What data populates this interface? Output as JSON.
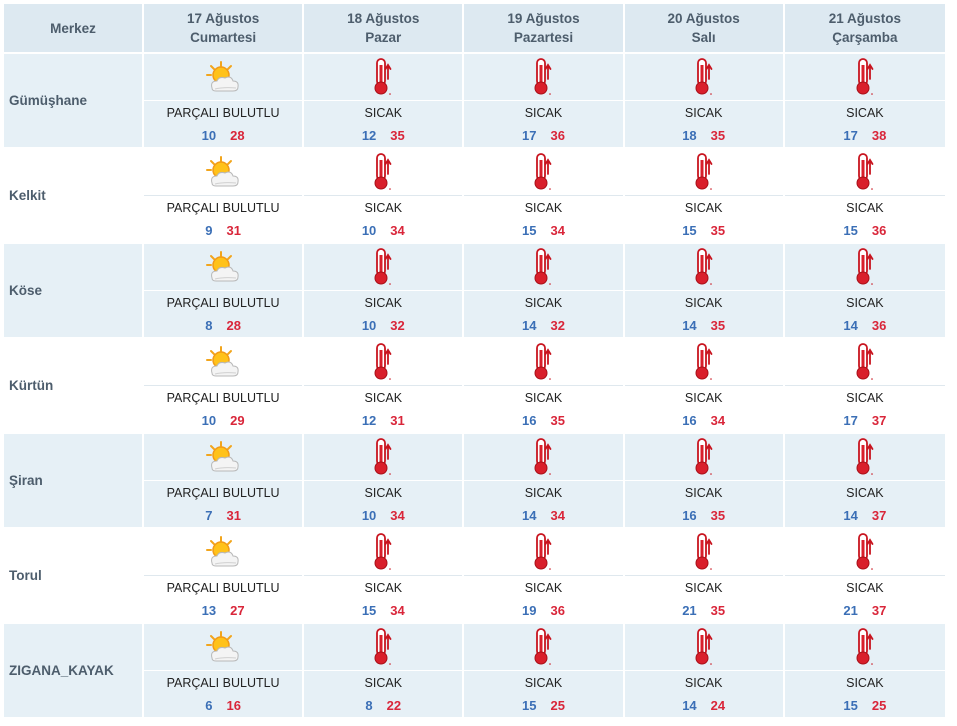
{
  "header": {
    "merkez_label": "Merkez",
    "days": [
      {
        "date": "17 Ağustos",
        "weekday": "Cumartesi"
      },
      {
        "date": "18 Ağustos",
        "weekday": "Pazar"
      },
      {
        "date": "19 Ağustos",
        "weekday": "Pazartesi"
      },
      {
        "date": "20 Ağustos",
        "weekday": "Salı"
      },
      {
        "date": "21 Ağustos",
        "weekday": "Çarşamba"
      }
    ]
  },
  "rows": [
    {
      "name": "Gümüşhane",
      "days": [
        {
          "icon": "partly-cloudy-icon",
          "desc": "PARÇALI BULUTLU",
          "min": "10",
          "max": "28"
        },
        {
          "icon": "hot-thermometer-icon",
          "desc": "SICAK",
          "min": "12",
          "max": "35"
        },
        {
          "icon": "hot-thermometer-icon",
          "desc": "SICAK",
          "min": "17",
          "max": "36"
        },
        {
          "icon": "hot-thermometer-icon",
          "desc": "SICAK",
          "min": "18",
          "max": "35"
        },
        {
          "icon": "hot-thermometer-icon",
          "desc": "SICAK",
          "min": "17",
          "max": "38"
        }
      ]
    },
    {
      "name": "Kelkit",
      "days": [
        {
          "icon": "partly-cloudy-icon",
          "desc": "PARÇALI BULUTLU",
          "min": "9",
          "max": "31"
        },
        {
          "icon": "hot-thermometer-icon",
          "desc": "SICAK",
          "min": "10",
          "max": "34"
        },
        {
          "icon": "hot-thermometer-icon",
          "desc": "SICAK",
          "min": "15",
          "max": "34"
        },
        {
          "icon": "hot-thermometer-icon",
          "desc": "SICAK",
          "min": "15",
          "max": "35"
        },
        {
          "icon": "hot-thermometer-icon",
          "desc": "SICAK",
          "min": "15",
          "max": "36"
        }
      ]
    },
    {
      "name": "Köse",
      "days": [
        {
          "icon": "partly-cloudy-icon",
          "desc": "PARÇALI BULUTLU",
          "min": "8",
          "max": "28"
        },
        {
          "icon": "hot-thermometer-icon",
          "desc": "SICAK",
          "min": "10",
          "max": "32"
        },
        {
          "icon": "hot-thermometer-icon",
          "desc": "SICAK",
          "min": "14",
          "max": "32"
        },
        {
          "icon": "hot-thermometer-icon",
          "desc": "SICAK",
          "min": "14",
          "max": "35"
        },
        {
          "icon": "hot-thermometer-icon",
          "desc": "SICAK",
          "min": "14",
          "max": "36"
        }
      ]
    },
    {
      "name": "Kürtün",
      "days": [
        {
          "icon": "partly-cloudy-icon",
          "desc": "PARÇALI BULUTLU",
          "min": "10",
          "max": "29"
        },
        {
          "icon": "hot-thermometer-icon",
          "desc": "SICAK",
          "min": "12",
          "max": "31"
        },
        {
          "icon": "hot-thermometer-icon",
          "desc": "SICAK",
          "min": "16",
          "max": "35"
        },
        {
          "icon": "hot-thermometer-icon",
          "desc": "SICAK",
          "min": "16",
          "max": "34"
        },
        {
          "icon": "hot-thermometer-icon",
          "desc": "SICAK",
          "min": "17",
          "max": "37"
        }
      ]
    },
    {
      "name": "Şiran",
      "days": [
        {
          "icon": "partly-cloudy-icon",
          "desc": "PARÇALI BULUTLU",
          "min": "7",
          "max": "31"
        },
        {
          "icon": "hot-thermometer-icon",
          "desc": "SICAK",
          "min": "10",
          "max": "34"
        },
        {
          "icon": "hot-thermometer-icon",
          "desc": "SICAK",
          "min": "14",
          "max": "34"
        },
        {
          "icon": "hot-thermometer-icon",
          "desc": "SICAK",
          "min": "16",
          "max": "35"
        },
        {
          "icon": "hot-thermometer-icon",
          "desc": "SICAK",
          "min": "14",
          "max": "37"
        }
      ]
    },
    {
      "name": "Torul",
      "days": [
        {
          "icon": "partly-cloudy-icon",
          "desc": "PARÇALI BULUTLU",
          "min": "13",
          "max": "27"
        },
        {
          "icon": "hot-thermometer-icon",
          "desc": "SICAK",
          "min": "15",
          "max": "34"
        },
        {
          "icon": "hot-thermometer-icon",
          "desc": "SICAK",
          "min": "19",
          "max": "36"
        },
        {
          "icon": "hot-thermometer-icon",
          "desc": "SICAK",
          "min": "21",
          "max": "35"
        },
        {
          "icon": "hot-thermometer-icon",
          "desc": "SICAK",
          "min": "21",
          "max": "37"
        }
      ]
    },
    {
      "name": "ZIGANA_KAYAK",
      "days": [
        {
          "icon": "partly-cloudy-icon",
          "desc": "PARÇALI BULUTLU",
          "min": "6",
          "max": "16"
        },
        {
          "icon": "hot-thermometer-icon",
          "desc": "SICAK",
          "min": "8",
          "max": "22"
        },
        {
          "icon": "hot-thermometer-icon",
          "desc": "SICAK",
          "min": "15",
          "max": "25"
        },
        {
          "icon": "hot-thermometer-icon",
          "desc": "SICAK",
          "min": "14",
          "max": "24"
        },
        {
          "icon": "hot-thermometer-icon",
          "desc": "SICAK",
          "min": "15",
          "max": "25"
        }
      ]
    }
  ],
  "colors": {
    "header_bg": "#dde9f1",
    "row_alt_bg": "#e6f0f6",
    "min_temp": "#3b6fb6",
    "max_temp": "#d9263a",
    "label_text": "#4d5d6c"
  }
}
